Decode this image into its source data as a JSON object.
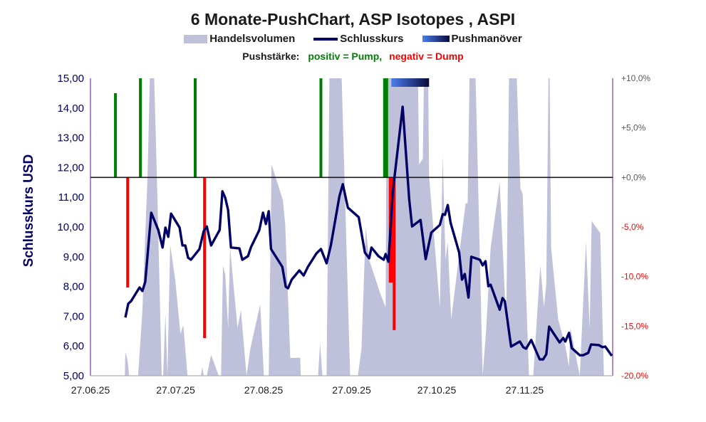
{
  "chart_data": {
    "type": "line",
    "title": "6 Monate-PushChart, ASP Isotopes , ASPI",
    "legend": [
      {
        "name": "Handelsvolumen",
        "color": "#bfc0da"
      },
      {
        "name": "Schlusskurs",
        "color": "#000066"
      },
      {
        "name": "Pushmanöver",
        "color": "#0a0a3a"
      }
    ],
    "push_strength_note": {
      "label": "Pushstärke:",
      "positive": "positiv = Pump,",
      "negative": "negativ = Dump"
    },
    "ylabel": "Schlusskurs USD",
    "ylim": [
      5,
      15
    ],
    "y2lim": [
      -20,
      10
    ],
    "xlim_days": [
      0,
      184
    ],
    "x_ticks": [
      {
        "day": 0,
        "label": "27.06.25"
      },
      {
        "day": 30,
        "label": "27.07.25"
      },
      {
        "day": 61,
        "label": "27.08.25"
      },
      {
        "day": 92,
        "label": "27.09.25"
      },
      {
        "day": 122,
        "label": "27.10.25"
      },
      {
        "day": 153,
        "label": "27.11.25"
      }
    ],
    "y_ticks": [
      "5,00",
      "6,00",
      "7,00",
      "8,00",
      "9,00",
      "10,00",
      "11,00",
      "12,00",
      "13,00",
      "14,00",
      "15,00"
    ],
    "y2_ticks": [
      {
        "v": 10,
        "label": "+10,0%"
      },
      {
        "v": 5,
        "label": "+5,0%"
      },
      {
        "v": 0,
        "label": "+0,0%"
      },
      {
        "v": -5,
        "label": "-5,0%"
      },
      {
        "v": -10,
        "label": "-10,0%"
      },
      {
        "v": -15,
        "label": "-15,0%"
      },
      {
        "v": -20,
        "label": "-20,0%"
      }
    ],
    "colors": {
      "price": "#000066",
      "volume": "#bfc0da",
      "pump": "#008000",
      "dump": "#ff0000",
      "zero": "#1a1a1a",
      "pos_tick": "#595959",
      "neg_tick": "#ff0000"
    },
    "price_series": [
      [
        12.3,
        6.96
      ],
      [
        13.3,
        7.42
      ],
      [
        14.3,
        7.51
      ],
      [
        17.3,
        7.97
      ],
      [
        18.3,
        7.85
      ],
      [
        19.3,
        8.16
      ],
      [
        21.4,
        10.48
      ],
      [
        23.9,
        9.9
      ],
      [
        25.4,
        9.31
      ],
      [
        26.4,
        9.98
      ],
      [
        27.4,
        9.67
      ],
      [
        28.4,
        10.45
      ],
      [
        31.4,
        9.98
      ],
      [
        32.4,
        9.38
      ],
      [
        33.4,
        9.38
      ],
      [
        34.4,
        8.97
      ],
      [
        35.4,
        8.9
      ],
      [
        38.4,
        9.26
      ],
      [
        39.9,
        9.86
      ],
      [
        41.0,
        10.02
      ],
      [
        42.5,
        9.38
      ],
      [
        45.5,
        9.9
      ],
      [
        46.5,
        11.2
      ],
      [
        47.5,
        10.98
      ],
      [
        48.5,
        10.57
      ],
      [
        49.5,
        9.31
      ],
      [
        52.5,
        9.28
      ],
      [
        53.5,
        8.9
      ],
      [
        55.5,
        9.02
      ],
      [
        56.5,
        9.31
      ],
      [
        59.5,
        9.9
      ],
      [
        60.8,
        10.48
      ],
      [
        61.8,
        10.1
      ],
      [
        62.8,
        10.53
      ],
      [
        63.6,
        9.26
      ],
      [
        67.6,
        8.66
      ],
      [
        68.8,
        7.99
      ],
      [
        69.6,
        7.94
      ],
      [
        70.9,
        8.23
      ],
      [
        73.6,
        8.54
      ],
      [
        75.1,
        8.37
      ],
      [
        76.6,
        8.66
      ],
      [
        79.6,
        9.11
      ],
      [
        81.2,
        9.26
      ],
      [
        83.2,
        8.78
      ],
      [
        84.7,
        9.38
      ],
      [
        87.7,
        11.03
      ],
      [
        88.9,
        11.44
      ],
      [
        90.7,
        10.65
      ],
      [
        94.5,
        10.33
      ],
      [
        96.7,
        9.14
      ],
      [
        98.2,
        8.95
      ],
      [
        99.0,
        9.31
      ],
      [
        101.5,
        9.02
      ],
      [
        103.3,
        8.9
      ],
      [
        104.0,
        9.09
      ],
      [
        105.0,
        8.83
      ],
      [
        106.5,
        11.17
      ],
      [
        110.0,
        14.04
      ],
      [
        112.3,
        10.93
      ],
      [
        113.3,
        10.02
      ],
      [
        116.3,
        10.24
      ],
      [
        118.1,
        8.92
      ],
      [
        120.1,
        9.81
      ],
      [
        123.1,
        10.07
      ],
      [
        124.1,
        10.43
      ],
      [
        124.9,
        10.41
      ],
      [
        125.9,
        10.74
      ],
      [
        126.9,
        10.14
      ],
      [
        129.9,
        9.14
      ],
      [
        130.9,
        8.23
      ],
      [
        131.9,
        8.42
      ],
      [
        133.2,
        7.63
      ],
      [
        134.2,
        9.0
      ],
      [
        137.2,
        8.9
      ],
      [
        138.2,
        8.71
      ],
      [
        139.2,
        8.85
      ],
      [
        140.2,
        8.01
      ],
      [
        141.0,
        8.06
      ],
      [
        144.2,
        7.22
      ],
      [
        145.2,
        7.61
      ],
      [
        146.0,
        7.51
      ],
      [
        148.2,
        5.98
      ],
      [
        151.3,
        6.15
      ],
      [
        152.5,
        5.96
      ],
      [
        153.5,
        5.91
      ],
      [
        155.3,
        6.2
      ],
      [
        158.3,
        5.55
      ],
      [
        159.5,
        5.55
      ],
      [
        160.6,
        5.72
      ],
      [
        161.6,
        6.65
      ],
      [
        165.3,
        6.12
      ],
      [
        166.6,
        6.27
      ],
      [
        167.3,
        6.15
      ],
      [
        168.6,
        6.44
      ],
      [
        169.6,
        5.93
      ],
      [
        172.4,
        5.69
      ],
      [
        173.6,
        5.69
      ],
      [
        175.4,
        5.77
      ],
      [
        176.4,
        6.05
      ],
      [
        179.1,
        6.03
      ],
      [
        180.4,
        5.96
      ],
      [
        181.4,
        5.98
      ],
      [
        183.7,
        5.67
      ]
    ],
    "volume_relative": [
      [
        12.1,
        0
      ],
      [
        12.3,
        0.08
      ],
      [
        13.1,
        0.05
      ],
      [
        13.6,
        0
      ],
      [
        16.8,
        0
      ],
      [
        18.3,
        0.22
      ],
      [
        20.1,
        0.67
      ],
      [
        21.4,
        1.2
      ],
      [
        21.9,
        1.2
      ],
      [
        23.4,
        0.67
      ],
      [
        25.1,
        0
      ],
      [
        25.6,
        0
      ],
      [
        26.4,
        0.21
      ],
      [
        27.1,
        0
      ],
      [
        28.1,
        0.44
      ],
      [
        29.9,
        0.32
      ],
      [
        31.7,
        0.14
      ],
      [
        32.7,
        0.17
      ],
      [
        34.2,
        0
      ],
      [
        38.9,
        0
      ],
      [
        39.4,
        0.03
      ],
      [
        39.9,
        0
      ],
      [
        41.0,
        0
      ],
      [
        42.5,
        0.07
      ],
      [
        45.2,
        0
      ],
      [
        46.0,
        0
      ],
      [
        46.7,
        0.37
      ],
      [
        47.5,
        0.34
      ],
      [
        48.5,
        0.16
      ],
      [
        49.2,
        0.43
      ],
      [
        51.8,
        0.16
      ],
      [
        53.0,
        0.22
      ],
      [
        55.0,
        0
      ],
      [
        56.3,
        0.09
      ],
      [
        59.8,
        0.24
      ],
      [
        61.1,
        0
      ],
      [
        62.8,
        0
      ],
      [
        63.8,
        0.71
      ],
      [
        67.8,
        0.59
      ],
      [
        68.6,
        0.51
      ],
      [
        70.4,
        0.06
      ],
      [
        73.9,
        0.06
      ],
      [
        74.1,
        0
      ],
      [
        80.2,
        0
      ],
      [
        80.9,
        0.11
      ],
      [
        81.7,
        0
      ],
      [
        83.2,
        0
      ],
      [
        84.4,
        1.2
      ],
      [
        87.9,
        1.2
      ],
      [
        91.5,
        0
      ],
      [
        94.2,
        0
      ],
      [
        95.5,
        0.09
      ],
      [
        97.0,
        0.5
      ],
      [
        98.2,
        0.39
      ],
      [
        102.0,
        0.28
      ],
      [
        104.0,
        0.23
      ],
      [
        104.5,
        1.2
      ],
      [
        115.1,
        1.2
      ],
      [
        115.8,
        0.71
      ],
      [
        117.1,
        0.73
      ],
      [
        117.8,
        1.2
      ],
      [
        118.8,
        1.2
      ],
      [
        119.3,
        0.67
      ],
      [
        123.1,
        0.23
      ],
      [
        124.1,
        0.74
      ],
      [
        125.1,
        0.39
      ],
      [
        125.9,
        0.45
      ],
      [
        127.1,
        0.19
      ],
      [
        132.2,
        0.58
      ],
      [
        132.9,
        0.58
      ],
      [
        133.9,
        1.2
      ],
      [
        135.2,
        1.2
      ],
      [
        138.2,
        0
      ],
      [
        139.4,
        0.15
      ],
      [
        141.0,
        0.43
      ],
      [
        144.2,
        0.65
      ],
      [
        146.5,
        0.17
      ],
      [
        147.7,
        1.2
      ],
      [
        149.5,
        1.2
      ],
      [
        151.5,
        0.63
      ],
      [
        152.3,
        0.61
      ],
      [
        154.5,
        0
      ],
      [
        156.0,
        0
      ],
      [
        158.5,
        0.37
      ],
      [
        159.8,
        0.23
      ],
      [
        160.6,
        0.31
      ],
      [
        161.6,
        1.2
      ],
      [
        162.3,
        0.43
      ],
      [
        164.8,
        0.19
      ],
      [
        167.3,
        0.1
      ],
      [
        168.6,
        0.03
      ],
      [
        169.1,
        0.16
      ],
      [
        172.4,
        0
      ],
      [
        174.6,
        0.45
      ],
      [
        175.9,
        0.16
      ],
      [
        176.6,
        0.52
      ],
      [
        179.6,
        0.48
      ],
      [
        180.9,
        0
      ],
      [
        183.9,
        0
      ]
    ],
    "push_bars_percent": [
      {
        "day": 8.8,
        "value": 8.5
      },
      {
        "day": 13.1,
        "value": -11.1
      },
      {
        "day": 17.6,
        "value": 10
      },
      {
        "day": 36.9,
        "value": 10
      },
      {
        "day": 40.2,
        "value": -16.2
      },
      {
        "day": 81.2,
        "value": 10
      },
      {
        "day": 104,
        "value": 10,
        "wide": true
      },
      {
        "day": 106,
        "value": -10.6,
        "wide": true
      },
      {
        "day": 107,
        "value": -15.4
      }
    ],
    "push_maneuver": {
      "start_day": 106,
      "end_day": 119.3
    }
  }
}
